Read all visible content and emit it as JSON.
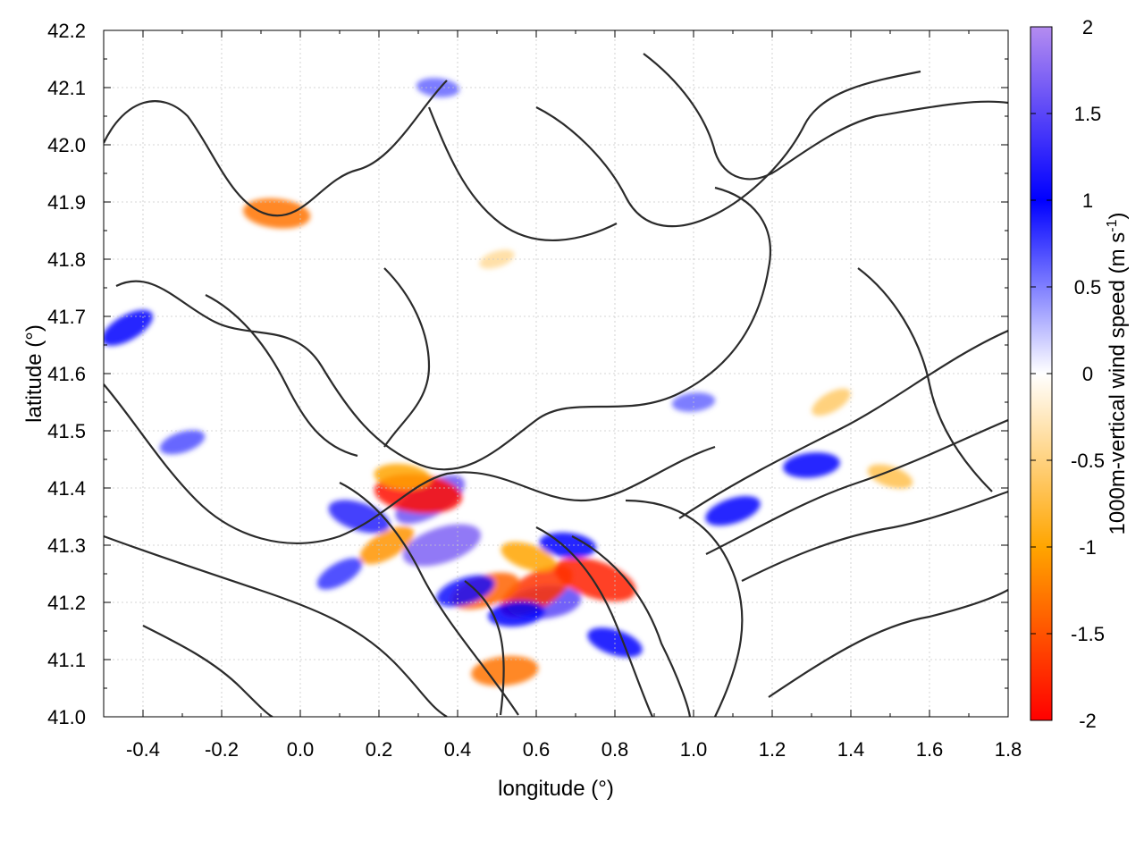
{
  "chart_data": {
    "type": "heatmap",
    "title": "",
    "xlabel": "longitude (°)",
    "ylabel": "latitude (°)",
    "xlim": [
      -0.5,
      1.8
    ],
    "ylim": [
      41.0,
      42.2
    ],
    "x_ticks": [
      -0.4,
      -0.2,
      0.0,
      0.2,
      0.4,
      0.6,
      0.8,
      1.0,
      1.2,
      1.4,
      1.6,
      1.8
    ],
    "x_tick_labels": [
      "-0.4",
      "-0.2",
      "0.0",
      "0.2",
      "0.4",
      "0.6",
      "0.8",
      "1.0",
      "1.2",
      "1.4",
      "1.6",
      "1.8"
    ],
    "y_ticks": [
      41.0,
      41.1,
      41.2,
      41.3,
      41.4,
      41.5,
      41.6,
      41.7,
      41.8,
      41.9,
      42.0,
      42.1,
      42.2
    ],
    "y_tick_labels": [
      "41.0",
      "41.1",
      "41.2",
      "41.3",
      "41.4",
      "41.5",
      "41.6",
      "41.7",
      "41.8",
      "41.9",
      "42.0",
      "42.1",
      "42.2"
    ],
    "grid": true,
    "colorbar": {
      "label": "1000m-vertical wind speed (m s",
      "label_superscript": "-1",
      "label_suffix": ")",
      "range": [
        -2,
        2
      ],
      "ticks": [
        2,
        1.5,
        1,
        0.5,
        0,
        -0.5,
        -1,
        -1.5,
        -2
      ],
      "tick_labels": [
        "2",
        "1.5",
        "1",
        "0.5",
        "0",
        "-0.5",
        "-1",
        "-1.5",
        "-2"
      ],
      "colors": {
        "max": "#b48cf0",
        "positive": "#0000ff",
        "zero": "#ffffff",
        "negative": "#ffa500",
        "min": "#ff0000"
      }
    },
    "features": [
      {
        "x": 0.33,
        "y": 41.38,
        "value": 1.6
      },
      {
        "x": 0.36,
        "y": 41.3,
        "value": 1.7
      },
      {
        "x": 0.62,
        "y": 41.2,
        "value": 1.5
      },
      {
        "x": 0.3,
        "y": 41.39,
        "value": -1.9
      },
      {
        "x": 0.75,
        "y": 41.24,
        "value": -1.8
      },
      {
        "x": 0.6,
        "y": 41.22,
        "value": -1.7
      },
      {
        "x": 0.47,
        "y": 41.22,
        "value": -1.4
      },
      {
        "x": 0.52,
        "y": 41.08,
        "value": -1.3
      },
      {
        "x": -0.06,
        "y": 41.88,
        "value": -1.3
      },
      {
        "x": 0.15,
        "y": 41.35,
        "value": 1.2
      },
      {
        "x": 0.22,
        "y": 41.3,
        "value": -1.1
      },
      {
        "x": 0.42,
        "y": 41.22,
        "value": 1.1
      },
      {
        "x": 0.55,
        "y": 41.18,
        "value": 1.0
      },
      {
        "x": 0.68,
        "y": 41.3,
        "value": 1.0
      },
      {
        "x": 0.8,
        "y": 41.13,
        "value": 1.0
      },
      {
        "x": -0.44,
        "y": 41.68,
        "value": 1.0
      },
      {
        "x": 1.1,
        "y": 41.36,
        "value": 1.0
      },
      {
        "x": 1.3,
        "y": 41.44,
        "value": 1.0
      },
      {
        "x": 0.26,
        "y": 41.42,
        "value": -1.0
      },
      {
        "x": 0.58,
        "y": 41.28,
        "value": -1.0
      },
      {
        "x": 0.1,
        "y": 41.25,
        "value": 0.8
      },
      {
        "x": -0.3,
        "y": 41.48,
        "value": 0.7
      },
      {
        "x": 1.0,
        "y": 41.55,
        "value": 0.6
      },
      {
        "x": 0.35,
        "y": 42.1,
        "value": 0.6
      },
      {
        "x": 1.5,
        "y": 41.42,
        "value": -0.7
      },
      {
        "x": 1.35,
        "y": 41.55,
        "value": -0.6
      },
      {
        "x": 0.5,
        "y": 41.8,
        "value": -0.4
      }
    ]
  }
}
